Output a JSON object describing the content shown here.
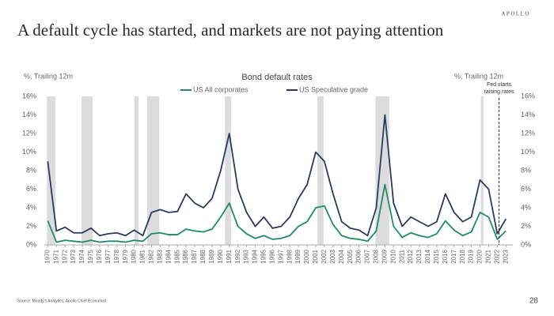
{
  "chart_data": {
    "type": "line",
    "brand": "APOLLO",
    "title": "A default cycle has started, and markets are not paying attention",
    "subtitle": "Bond default rates",
    "ylabel": "%, Trailing 12m",
    "y2label": "%, Trailing 12m",
    "source": "Source: Moody's Analytics, Apollo Chief Economist",
    "page": "28",
    "x": [
      1970,
      1971,
      1972,
      1973,
      1974,
      1975,
      1976,
      1977,
      1978,
      1979,
      1980,
      1981,
      1982,
      1983,
      1984,
      1985,
      1986,
      1987,
      1988,
      1989,
      1990,
      1991,
      1992,
      1993,
      1994,
      1995,
      1996,
      1997,
      1998,
      1999,
      2000,
      2001,
      2002,
      2003,
      2004,
      2005,
      2006,
      2007,
      2008,
      2009,
      2010,
      2011,
      2012,
      2013,
      2014,
      2015,
      2016,
      2017,
      2018,
      2019,
      2020,
      2021,
      2022,
      2023
    ],
    "xticks": [
      1970,
      1971,
      1972,
      1973,
      1974,
      1975,
      1976,
      1977,
      1978,
      1979,
      1980,
      1981,
      1982,
      1983,
      1984,
      1985,
      1986,
      1987,
      1988,
      1989,
      1990,
      1991,
      1992,
      1993,
      1994,
      1995,
      1996,
      1997,
      1998,
      1999,
      2000,
      2001,
      2002,
      2003,
      2004,
      2005,
      2006,
      2007,
      2008,
      2009,
      2010,
      2011,
      2012,
      2013,
      2014,
      2015,
      2016,
      2017,
      2018,
      2019,
      2020,
      2021,
      2022,
      2023
    ],
    "xlim": [
      1969.6,
      2023.8
    ],
    "series": [
      {
        "name": "US All corporates",
        "color": "#1f8a6c",
        "values": [
          2.6,
          0.3,
          0.5,
          0.4,
          0.3,
          0.5,
          0.3,
          0.4,
          0.4,
          0.3,
          0.5,
          0.4,
          1.2,
          1.3,
          1.1,
          1.1,
          1.7,
          1.5,
          1.4,
          1.7,
          3.0,
          4.5,
          2.0,
          1.2,
          0.7,
          1.0,
          0.6,
          0.7,
          1.0,
          2.0,
          2.5,
          4.0,
          4.2,
          2.2,
          1.0,
          0.7,
          0.6,
          0.4,
          1.5,
          6.5,
          2.0,
          0.8,
          1.3,
          1.0,
          0.8,
          1.2,
          2.6,
          1.6,
          1.0,
          1.4,
          3.5,
          3.0,
          0.6,
          1.5
        ]
      },
      {
        "name": "US Speculative grade",
        "color": "#2c3a5e",
        "values": [
          9.0,
          1.5,
          1.9,
          1.3,
          1.3,
          1.8,
          1.0,
          1.2,
          1.3,
          1.0,
          1.6,
          1.0,
          3.5,
          3.8,
          3.5,
          3.6,
          5.5,
          4.5,
          4.0,
          5.0,
          8.0,
          12.0,
          6.0,
          3.5,
          2.0,
          3.0,
          1.8,
          2.0,
          3.0,
          5.0,
          6.5,
          10.0,
          9.0,
          5.5,
          2.5,
          1.8,
          1.6,
          1.0,
          4.0,
          14.0,
          4.5,
          2.0,
          3.0,
          2.5,
          2.0,
          2.5,
          5.5,
          3.5,
          2.5,
          3.0,
          7.0,
          6.0,
          1.2,
          2.8
        ]
      }
    ],
    "shaded_periods": [
      [
        1969.9,
        1970.9
      ],
      [
        1973.9,
        1975.2
      ],
      [
        1980.0,
        1980.5
      ],
      [
        1981.5,
        1982.9
      ],
      [
        1990.5,
        1991.2
      ],
      [
        2001.2,
        2001.9
      ],
      [
        2007.9,
        2009.5
      ],
      [
        2020.1,
        2020.4
      ]
    ],
    "shade_color": "#dcdcdc",
    "annotation": {
      "lines": [
        "Fed starts",
        "raising rates"
      ],
      "x": 2022.2
    },
    "ylim": [
      0,
      16
    ],
    "yticks": [
      {
        "value": 0,
        "label": "0%"
      },
      {
        "value": 2,
        "label": "2%"
      },
      {
        "value": 4,
        "label": "4%"
      },
      {
        "value": 6,
        "label": "6%"
      },
      {
        "value": 8,
        "label": "8%"
      },
      {
        "value": 10,
        "label": "10%"
      },
      {
        "value": 12,
        "label": "12%"
      },
      {
        "value": 14,
        "label": "14%"
      },
      {
        "value": 16,
        "label": "16%"
      }
    ],
    "y2lim": [
      0,
      16
    ],
    "y2ticks": [
      {
        "value": 0,
        "label": "0%"
      },
      {
        "value": 2,
        "label": "2%"
      },
      {
        "value": 4,
        "label": "4%"
      },
      {
        "value": 6,
        "label": "6%"
      },
      {
        "value": 8,
        "label": "8%"
      },
      {
        "value": 10,
        "label": "10%"
      },
      {
        "value": 12,
        "label": "12%"
      },
      {
        "value": 14,
        "label": "14%"
      },
      {
        "value": 16,
        "label": "16%"
      }
    ]
  }
}
